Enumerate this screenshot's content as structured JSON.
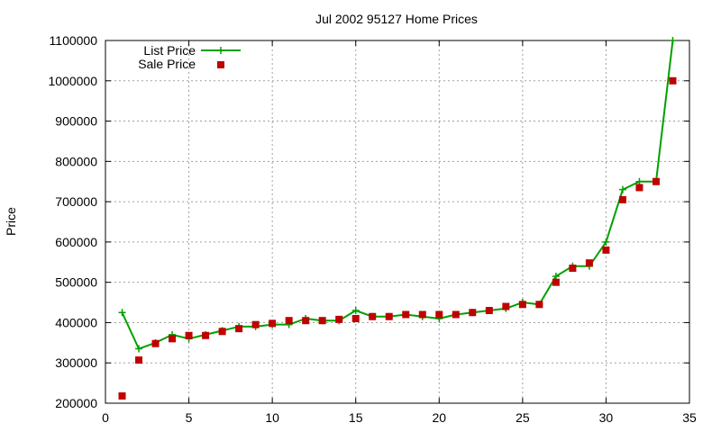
{
  "chart_data": {
    "type": "line",
    "title": "Jul 2002 95127 Home Prices",
    "xlabel": "",
    "ylabel": "Price",
    "xlim": [
      0,
      35
    ],
    "ylim": [
      200000,
      1100000
    ],
    "x_ticks": [
      0,
      5,
      10,
      15,
      20,
      25,
      30,
      35
    ],
    "y_ticks": [
      200000,
      300000,
      400000,
      500000,
      600000,
      700000,
      800000,
      900000,
      1000000,
      1100000
    ],
    "x_tick_labels": [
      "0",
      "5",
      "10",
      "15",
      "20",
      "25",
      "30",
      "35"
    ],
    "y_tick_labels": [
      "200000",
      "300000",
      "400000",
      "500000",
      "600000",
      "700000",
      "800000",
      "900000",
      "1000000",
      "1100000"
    ],
    "grid": true,
    "legend_position": "top-left",
    "x": [
      1,
      2,
      3,
      4,
      5,
      6,
      7,
      8,
      9,
      10,
      11,
      12,
      13,
      14,
      15,
      16,
      17,
      18,
      19,
      20,
      21,
      22,
      23,
      24,
      25,
      26,
      27,
      28,
      29,
      30,
      31,
      32,
      33,
      34
    ],
    "series": [
      {
        "name": "List Price",
        "style": "line-with-plus",
        "color": "#00a000",
        "values": [
          425000,
          335000,
          350000,
          370000,
          360000,
          370000,
          380000,
          390000,
          390000,
          395000,
          395000,
          410000,
          405000,
          405000,
          430000,
          415000,
          415000,
          420000,
          415000,
          410000,
          420000,
          425000,
          430000,
          435000,
          450000,
          445000,
          515000,
          540000,
          540000,
          600000,
          730000,
          750000,
          750000,
          1100000
        ]
      },
      {
        "name": "Sale Price",
        "style": "square-markers",
        "color": "#c00000",
        "values": [
          218000,
          307000,
          348000,
          360000,
          368000,
          368000,
          378000,
          385000,
          395000,
          398000,
          405000,
          405000,
          405000,
          408000,
          410000,
          415000,
          415000,
          420000,
          420000,
          420000,
          420000,
          425000,
          430000,
          440000,
          445000,
          445000,
          500000,
          535000,
          548000,
          580000,
          705000,
          735000,
          750000,
          1000000
        ]
      }
    ]
  }
}
